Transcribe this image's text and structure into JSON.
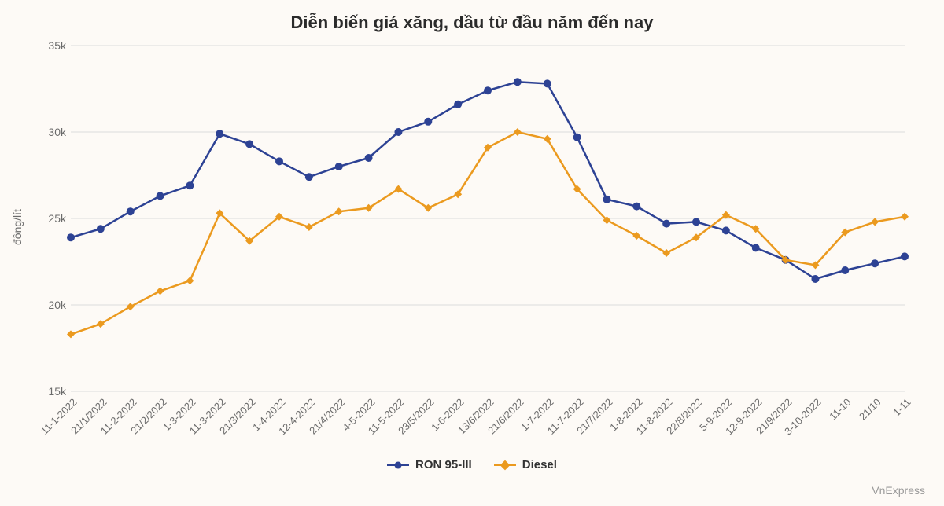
{
  "title": "Diễn biến giá xăng, dầu từ đầu năm đến nay",
  "ylabel": "đồng/lít",
  "credit": "VnExpress",
  "chart": {
    "type": "line",
    "background_color": "#fdfaf6",
    "grid_color": "#dcdcdc",
    "grid_width": 1,
    "title_fontsize": 22,
    "label_fontsize": 14,
    "tick_fontsize": 14,
    "ylim": [
      15,
      35
    ],
    "ytick_step": 5,
    "ytick_labels": [
      "15k",
      "20k",
      "25k",
      "30k",
      "35k"
    ],
    "x_labels": [
      "11-1-2022",
      "21/1/2022",
      "11-2-2022",
      "21/2/2022",
      "1-3-2022",
      "11-3-2022",
      "21/3/2022",
      "1-4-2022",
      "12-4-2022",
      "21/4/2022",
      "4-5-2022",
      "11-5-2022",
      "23/5/2022",
      "1-6-2022",
      "13/6/2022",
      "21/6/2022",
      "1-7-2022",
      "11-7-2022",
      "21/7/2022",
      "1-8-2022",
      "11-8-2022",
      "22/8/2022",
      "5-9-2022",
      "12-9-2022",
      "21/9/2022",
      "3-10-2022",
      "11-10",
      "21/10",
      "1-11"
    ],
    "series": [
      {
        "name": "RON 95-III",
        "color": "#2d4294",
        "line_width": 2.5,
        "marker": "circle",
        "marker_size": 5,
        "values": [
          23.9,
          24.4,
          25.4,
          26.3,
          26.9,
          29.9,
          29.3,
          28.3,
          27.4,
          28.0,
          28.5,
          30.0,
          30.6,
          31.6,
          32.4,
          32.9,
          32.8,
          29.7,
          26.1,
          25.7,
          24.7,
          24.8,
          24.3,
          23.3,
          22.6,
          21.5,
          22.0,
          22.4,
          22.8
        ]
      },
      {
        "name": "Diesel",
        "color": "#eb9a1f",
        "line_width": 2.5,
        "marker": "diamond",
        "marker_size": 5,
        "values": [
          18.3,
          18.9,
          19.9,
          20.8,
          21.4,
          25.3,
          23.7,
          25.1,
          24.5,
          25.4,
          25.6,
          26.7,
          25.6,
          26.4,
          29.1,
          30.0,
          29.6,
          26.7,
          24.9,
          24.0,
          23.0,
          23.9,
          25.2,
          24.4,
          22.6,
          22.3,
          24.2,
          24.8,
          25.1
        ]
      }
    ],
    "legend": {
      "position": "bottom",
      "items": [
        "RON 95-III",
        "Diesel"
      ]
    }
  }
}
